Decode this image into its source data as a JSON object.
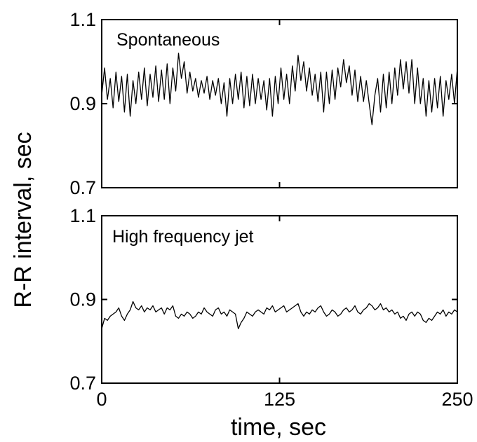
{
  "chart_data": {
    "type": "line",
    "shared_ylabel": "R-R interval, sec",
    "shared_xlabel": "time, sec",
    "panels": [
      {
        "title": "Spontaneous",
        "xlim": [
          0,
          250
        ],
        "ylim": [
          0.7,
          1.1
        ],
        "yticks": [
          0.7,
          0.9,
          1.1
        ],
        "ytick_labels": [
          "0.7",
          "0.9",
          "1.1"
        ],
        "xticks": [
          0,
          125,
          250
        ],
        "series": [
          {
            "x": [
              0,
              2,
              4,
              6,
              8,
              10,
              12,
              14,
              16,
              18,
              20,
              22,
              24,
              26,
              28,
              30,
              32,
              34,
              36,
              38,
              40,
              42,
              44,
              46,
              48,
              50,
              52,
              54,
              56,
              58,
              60,
              62,
              64,
              66,
              68,
              70,
              72,
              74,
              76,
              78,
              80,
              82,
              84,
              86,
              88,
              90,
              92,
              94,
              96,
              98,
              100,
              102,
              104,
              106,
              108,
              110,
              112,
              114,
              116,
              118,
              120,
              122,
              124,
              126,
              128,
              130,
              132,
              134,
              136,
              138,
              140,
              142,
              144,
              146,
              148,
              150,
              152,
              154,
              156,
              158,
              160,
              162,
              164,
              166,
              168,
              170,
              172,
              174,
              176,
              178,
              180,
              182,
              184,
              186,
              188,
              190,
              192,
              194,
              196,
              198,
              200,
              202,
              204,
              206,
              208,
              210,
              212,
              214,
              216,
              218,
              220,
              222,
              224,
              226,
              228,
              230,
              232,
              234,
              236,
              238,
              240,
              242,
              244,
              246,
              248,
              250
            ],
            "y": [
              0.92,
              0.985,
              0.91,
              0.96,
              0.89,
              0.975,
              0.905,
              0.965,
              0.88,
              0.97,
              0.87,
              0.955,
              0.9,
              0.975,
              0.91,
              0.985,
              0.895,
              0.97,
              0.915,
              0.99,
              0.905,
              0.98,
              0.91,
              0.995,
              0.9,
              0.985,
              0.93,
              1.02,
              0.96,
              1.0,
              0.925,
              0.975,
              0.93,
              0.96,
              0.915,
              0.955,
              0.925,
              0.965,
              0.91,
              0.955,
              0.92,
              0.96,
              0.9,
              0.95,
              0.87,
              0.96,
              0.9,
              0.97,
              0.91,
              0.975,
              0.89,
              0.965,
              0.895,
              0.97,
              0.9,
              0.96,
              0.91,
              0.955,
              0.885,
              0.96,
              0.87,
              0.965,
              0.9,
              0.985,
              0.91,
              0.97,
              0.9,
              0.99,
              0.93,
              1.015,
              0.955,
              1.0,
              0.93,
              0.985,
              0.92,
              0.97,
              0.905,
              0.975,
              0.88,
              0.975,
              0.9,
              0.98,
              0.91,
              0.985,
              0.94,
              1.005,
              0.95,
              0.99,
              0.92,
              0.98,
              0.905,
              0.965,
              0.905,
              0.955,
              0.9,
              0.85,
              0.92,
              0.96,
              0.88,
              0.97,
              0.89,
              0.975,
              0.9,
              0.985,
              0.92,
              1.005,
              0.935,
              1.0,
              0.925,
              1.005,
              0.9,
              0.985,
              0.9,
              0.96,
              0.87,
              0.955,
              0.88,
              0.96,
              0.89,
              0.965,
              0.87,
              0.955,
              0.91,
              0.97,
              0.9,
              0.985
            ]
          }
        ]
      },
      {
        "title": "High frequency jet",
        "xlim": [
          0,
          250
        ],
        "ylim": [
          0.7,
          1.1
        ],
        "yticks": [
          0.7,
          0.9,
          1.1
        ],
        "ytick_labels": [
          "0.7",
          "0.9",
          "1.1"
        ],
        "xticks": [
          0,
          125,
          250
        ],
        "xtick_labels": [
          "0",
          "125",
          "250"
        ],
        "series": [
          {
            "x": [
              0,
              2,
              4,
              6,
              8,
              10,
              12,
              14,
              16,
              18,
              20,
              22,
              24,
              26,
              28,
              30,
              32,
              34,
              36,
              38,
              40,
              42,
              44,
              46,
              48,
              50,
              52,
              54,
              56,
              58,
              60,
              62,
              64,
              66,
              68,
              70,
              72,
              74,
              76,
              78,
              80,
              82,
              84,
              86,
              88,
              90,
              92,
              94,
              96,
              98,
              100,
              102,
              104,
              106,
              108,
              110,
              112,
              114,
              116,
              118,
              120,
              122,
              124,
              126,
              128,
              130,
              132,
              134,
              136,
              138,
              140,
              142,
              144,
              146,
              148,
              150,
              152,
              154,
              156,
              158,
              160,
              162,
              164,
              166,
              168,
              170,
              172,
              174,
              176,
              178,
              180,
              182,
              184,
              186,
              188,
              190,
              192,
              194,
              196,
              198,
              200,
              202,
              204,
              206,
              208,
              210,
              212,
              214,
              216,
              218,
              220,
              222,
              224,
              226,
              228,
              230,
              232,
              234,
              236,
              238,
              240,
              242,
              244,
              246,
              248,
              250
            ],
            "y": [
              0.83,
              0.855,
              0.85,
              0.86,
              0.865,
              0.87,
              0.88,
              0.86,
              0.85,
              0.865,
              0.875,
              0.895,
              0.88,
              0.875,
              0.885,
              0.87,
              0.88,
              0.875,
              0.885,
              0.87,
              0.875,
              0.88,
              0.865,
              0.88,
              0.875,
              0.885,
              0.86,
              0.855,
              0.865,
              0.86,
              0.87,
              0.865,
              0.855,
              0.86,
              0.87,
              0.865,
              0.88,
              0.87,
              0.865,
              0.86,
              0.875,
              0.88,
              0.865,
              0.87,
              0.86,
              0.875,
              0.87,
              0.865,
              0.83,
              0.845,
              0.855,
              0.87,
              0.865,
              0.86,
              0.87,
              0.875,
              0.87,
              0.865,
              0.88,
              0.875,
              0.885,
              0.87,
              0.875,
              0.88,
              0.885,
              0.87,
              0.875,
              0.88,
              0.885,
              0.89,
              0.87,
              0.86,
              0.87,
              0.865,
              0.875,
              0.87,
              0.88,
              0.885,
              0.87,
              0.86,
              0.865,
              0.875,
              0.87,
              0.86,
              0.865,
              0.875,
              0.88,
              0.87,
              0.875,
              0.885,
              0.87,
              0.865,
              0.875,
              0.88,
              0.89,
              0.885,
              0.875,
              0.88,
              0.89,
              0.875,
              0.88,
              0.87,
              0.875,
              0.865,
              0.87,
              0.855,
              0.86,
              0.85,
              0.865,
              0.87,
              0.86,
              0.87,
              0.865,
              0.85,
              0.845,
              0.855,
              0.85,
              0.86,
              0.87,
              0.865,
              0.875,
              0.86,
              0.87,
              0.865,
              0.875,
              0.87
            ]
          }
        ]
      }
    ],
    "grid": false,
    "legend": "none"
  }
}
